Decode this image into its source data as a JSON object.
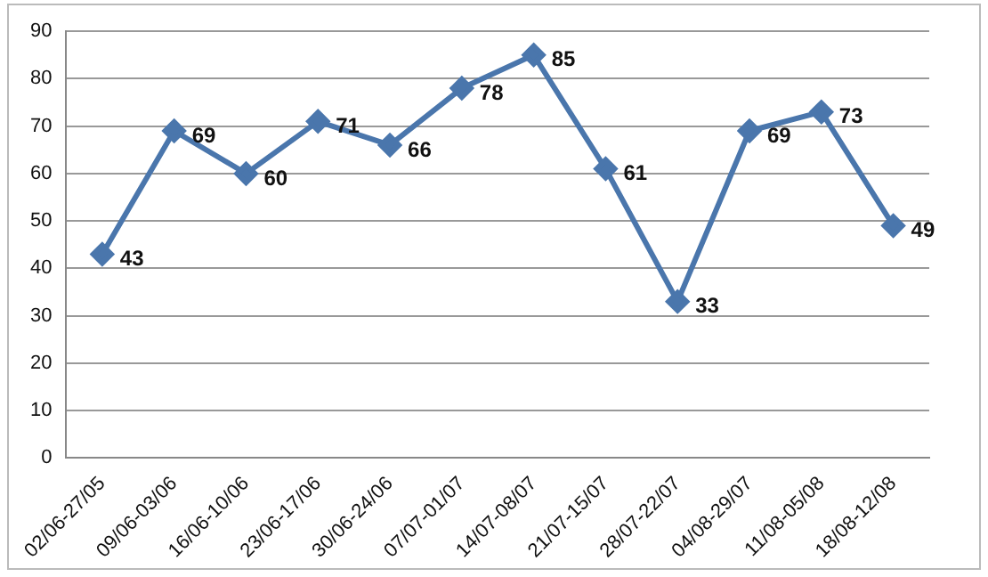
{
  "chart_data": {
    "type": "line",
    "categories": [
      "02/06-27/05",
      "09/06-03/06",
      "16/06-10/06",
      "23/06-17/06",
      "30/06-24/06",
      "07/07-01/07",
      "14/07-08/07",
      "21/07-15/07",
      "28/07-22/07",
      "04/08-29/07",
      "11/08-05/08",
      "18/08-12/08"
    ],
    "series": [
      {
        "color": "#4a76ac",
        "values": [
          43,
          69,
          60,
          71,
          66,
          78,
          85,
          61,
          33,
          69,
          73,
          49
        ]
      }
    ],
    "ylim": [
      0,
      90
    ],
    "yticks": [
      0,
      10,
      20,
      30,
      40,
      50,
      60,
      70,
      80,
      90
    ],
    "grid": "y",
    "marker": "diamond",
    "line_style": "solid",
    "data_labels": true,
    "legend": false
  }
}
